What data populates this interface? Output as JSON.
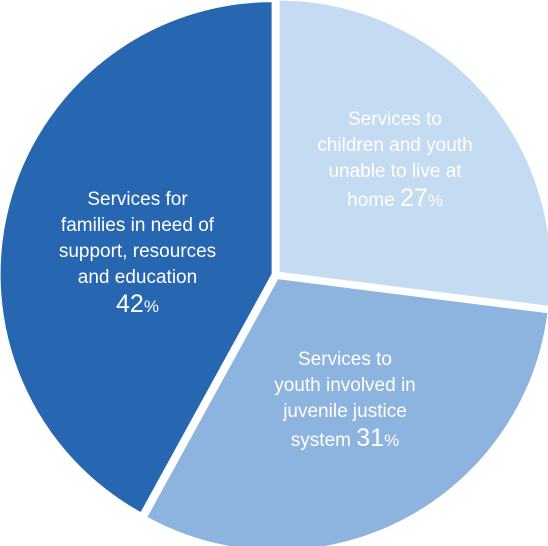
{
  "chart_data": {
    "type": "pie",
    "title": "",
    "slices": [
      {
        "label_lines": [
          "Services to",
          "children and youth",
          "unable to live at"
        ],
        "label_tail": "home",
        "value": 27,
        "pct_symbol": "%",
        "color": "#c5dbf1"
      },
      {
        "label_lines": [
          "Services to",
          "youth involved in",
          "juvenile justice"
        ],
        "label_tail": "system",
        "value": 31,
        "pct_symbol": "%",
        "color": "#8db4de"
      },
      {
        "label_lines": [
          "Services for",
          "families in need of",
          "support, resources",
          "and education"
        ],
        "label_tail": "",
        "value": 42,
        "pct_symbol": "%",
        "color": "#2767b1"
      }
    ]
  }
}
